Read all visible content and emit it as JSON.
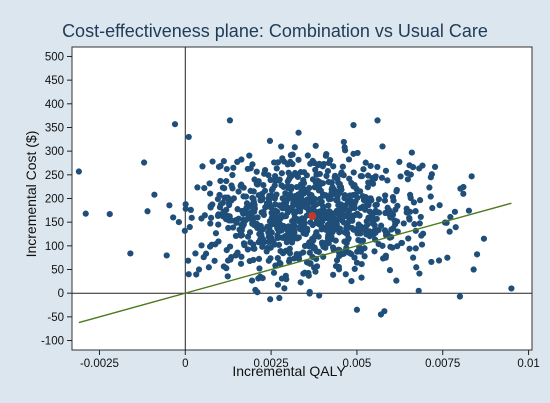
{
  "chart_data": {
    "type": "scatter",
    "title": "Cost-effectiveness plane: Combination vs Usual Care",
    "xlabel": "Incremental QALY",
    "ylabel": "Incremental Cost ($)",
    "xlim": [
      -0.0033,
      0.0101
    ],
    "ylim": [
      -120,
      520
    ],
    "x_ticks": [
      -0.0025,
      0,
      0.0025,
      0.005,
      0.0075,
      0.01
    ],
    "x_tick_labels": [
      "-0.0025",
      "0",
      "0.0025",
      "0.005",
      "0.0075",
      "0.01"
    ],
    "y_ticks": [
      -100,
      -50,
      0,
      50,
      100,
      150,
      200,
      250,
      300,
      350,
      400,
      450,
      500
    ],
    "y_tick_labels": [
      "-100",
      "-50",
      "0",
      "50",
      "100",
      "150",
      "200",
      "250",
      "300",
      "350",
      "400",
      "450",
      "500"
    ],
    "grid": false,
    "point_color": "#1f4e79",
    "mean_point": {
      "x": 0.0037,
      "y": 163,
      "color": "#c0392b"
    },
    "reference_line": {
      "x": [
        -0.0031,
        0.0095
      ],
      "y": [
        -62,
        190
      ],
      "color": "#4f7a1f"
    },
    "outlier_points": [
      {
        "x": -0.0031,
        "y": 257
      },
      {
        "x": -0.0029,
        "y": 168
      },
      {
        "x": -0.0022,
        "y": 167
      },
      {
        "x": -0.0016,
        "y": 84
      },
      {
        "x": -0.0012,
        "y": 276
      },
      {
        "x": -0.0011,
        "y": 173
      },
      {
        "x": -0.0009,
        "y": 208
      },
      {
        "x": -0.0003,
        "y": 357
      },
      {
        "x": 0.0001,
        "y": 330
      },
      {
        "x": 0.0013,
        "y": 365
      },
      {
        "x": 0.0056,
        "y": 365
      },
      {
        "x": 0.0049,
        "y": 355
      },
      {
        "x": 0.0033,
        "y": 339
      },
      {
        "x": 0.0066,
        "y": 297
      },
      {
        "x": 0.0095,
        "y": 10
      },
      {
        "x": 0.008,
        "y": -7
      },
      {
        "x": 0.0058,
        "y": -38
      },
      {
        "x": 0.0057,
        "y": -45
      },
      {
        "x": 0.005,
        "y": -35
      },
      {
        "x": 0.0087,
        "y": 115
      },
      {
        "x": 0.0084,
        "y": 50
      },
      {
        "x": 0.0081,
        "y": 210
      },
      {
        "x": 0.0068,
        "y": 5
      },
      {
        "x": 0.0039,
        "y": -5
      },
      {
        "x": 0.0027,
        "y": 18
      },
      {
        "x": 0.0021,
        "y": 2
      },
      {
        "x": 0.0077,
        "y": 130
      },
      {
        "x": 0.0085,
        "y": 82
      },
      {
        "x": 0.0001,
        "y": 40
      },
      {
        "x": 0.0004,
        "y": 50
      }
    ],
    "cloud": {
      "n": 900,
      "x_mean": 0.0037,
      "x_sd": 0.0017,
      "y_mean": 163,
      "y_sd": 62,
      "x_range": [
        -0.0008,
        0.0086
      ],
      "y_range": [
        -20,
        345
      ],
      "seed": 7
    }
  }
}
